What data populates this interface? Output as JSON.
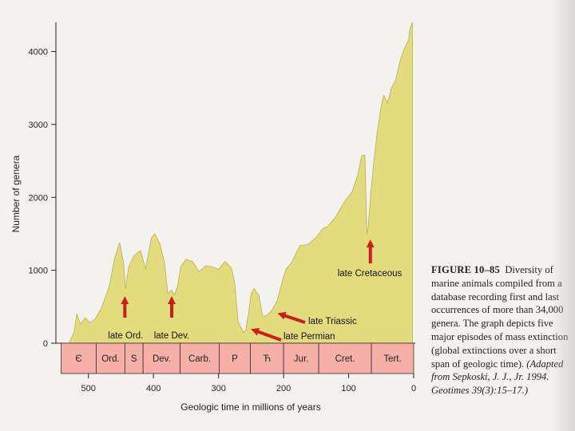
{
  "chart_data": {
    "type": "area",
    "title": "",
    "xlabel": "Geologic time in millions of years",
    "ylabel": "Number of genera",
    "xlim": [
      550,
      0
    ],
    "ylim": [
      0,
      4400
    ],
    "x_ticks": [
      500,
      400,
      300,
      200,
      100,
      0
    ],
    "y_ticks": [
      0,
      1000,
      2000,
      3000,
      4000
    ],
    "fill_color": "#e3dc7f",
    "series": [
      {
        "x": [
          545,
          530,
          522,
          518,
          512,
          505,
          498,
          490,
          480,
          468,
          460,
          452,
          446,
          443,
          438,
          430,
          420,
          412,
          408,
          403,
          398,
          390,
          383,
          378,
          372,
          368,
          363,
          358,
          350,
          340,
          330,
          320,
          310,
          300,
          290,
          280,
          275,
          270,
          262,
          258,
          254,
          250,
          245,
          242,
          238,
          232,
          226,
          218,
          210,
          206,
          201,
          196,
          188,
          175,
          163,
          150,
          140,
          132,
          120,
          108,
          95,
          86,
          80,
          75,
          72,
          70,
          66,
          62,
          56,
          50,
          46,
          40,
          34,
          28,
          20,
          14,
          8,
          6,
          4,
          2
        ],
        "y": [
          0,
          0,
          150,
          400,
          260,
          350,
          280,
          330,
          480,
          780,
          1150,
          1380,
          1100,
          750,
          1050,
          1200,
          1270,
          1020,
          1220,
          1450,
          1500,
          1360,
          1100,
          680,
          730,
          660,
          780,
          1050,
          1150,
          1120,
          980,
          1060,
          1050,
          1010,
          1120,
          1030,
          820,
          300,
          150,
          180,
          400,
          680,
          750,
          700,
          660,
          360,
          380,
          450,
          580,
          710,
          880,
          1020,
          1100,
          1340,
          1350,
          1450,
          1570,
          1600,
          1730,
          1920,
          2070,
          2300,
          2570,
          2580,
          1500,
          1580,
          2050,
          2430,
          2900,
          3250,
          3400,
          3300,
          3500,
          3600,
          3900,
          4050,
          4150,
          4300,
          4350,
          4400
        ]
      }
    ],
    "extinctions": [
      {
        "label": "late Ord.",
        "x": 444
      },
      {
        "label": "late Dev.",
        "x": 372
      },
      {
        "label": "late Permian",
        "x": 252
      },
      {
        "label": "late Triassic",
        "x": 201
      },
      {
        "label": "late Cretaceous",
        "x": 66
      }
    ],
    "periods": [
      {
        "label": "Є",
        "start": 542,
        "end": 488
      },
      {
        "label": "Ord.",
        "start": 488,
        "end": 444
      },
      {
        "label": "S",
        "start": 444,
        "end": 416
      },
      {
        "label": "Dev.",
        "start": 416,
        "end": 359
      },
      {
        "label": "Carb.",
        "start": 359,
        "end": 299
      },
      {
        "label": "P",
        "start": 299,
        "end": 251
      },
      {
        "label": "Ћ",
        "start": 251,
        "end": 200
      },
      {
        "label": "Jur.",
        "start": 200,
        "end": 146
      },
      {
        "label": "Cret.",
        "start": 146,
        "end": 65
      },
      {
        "label": "Tert.",
        "start": 65,
        "end": 0
      }
    ],
    "colors": {
      "background": "#f4f2ee",
      "area": "#e3dc7f",
      "period_band": "#f7b0a8",
      "arrow": "#c9201c",
      "axis": "#222222"
    }
  },
  "caption": {
    "figure_label": "FIGURE 10–85",
    "text": "Diversity of marine animals compiled from a database recording first and last occurrences of more than 34,000 genera. The graph depicts five major episodes of mass extinction (global extinctions over a short span of geologic time).",
    "source": "(Adapted from Sepkoski, J. J., Jr. 1994. Geotimes 39(3):15–17.)"
  }
}
